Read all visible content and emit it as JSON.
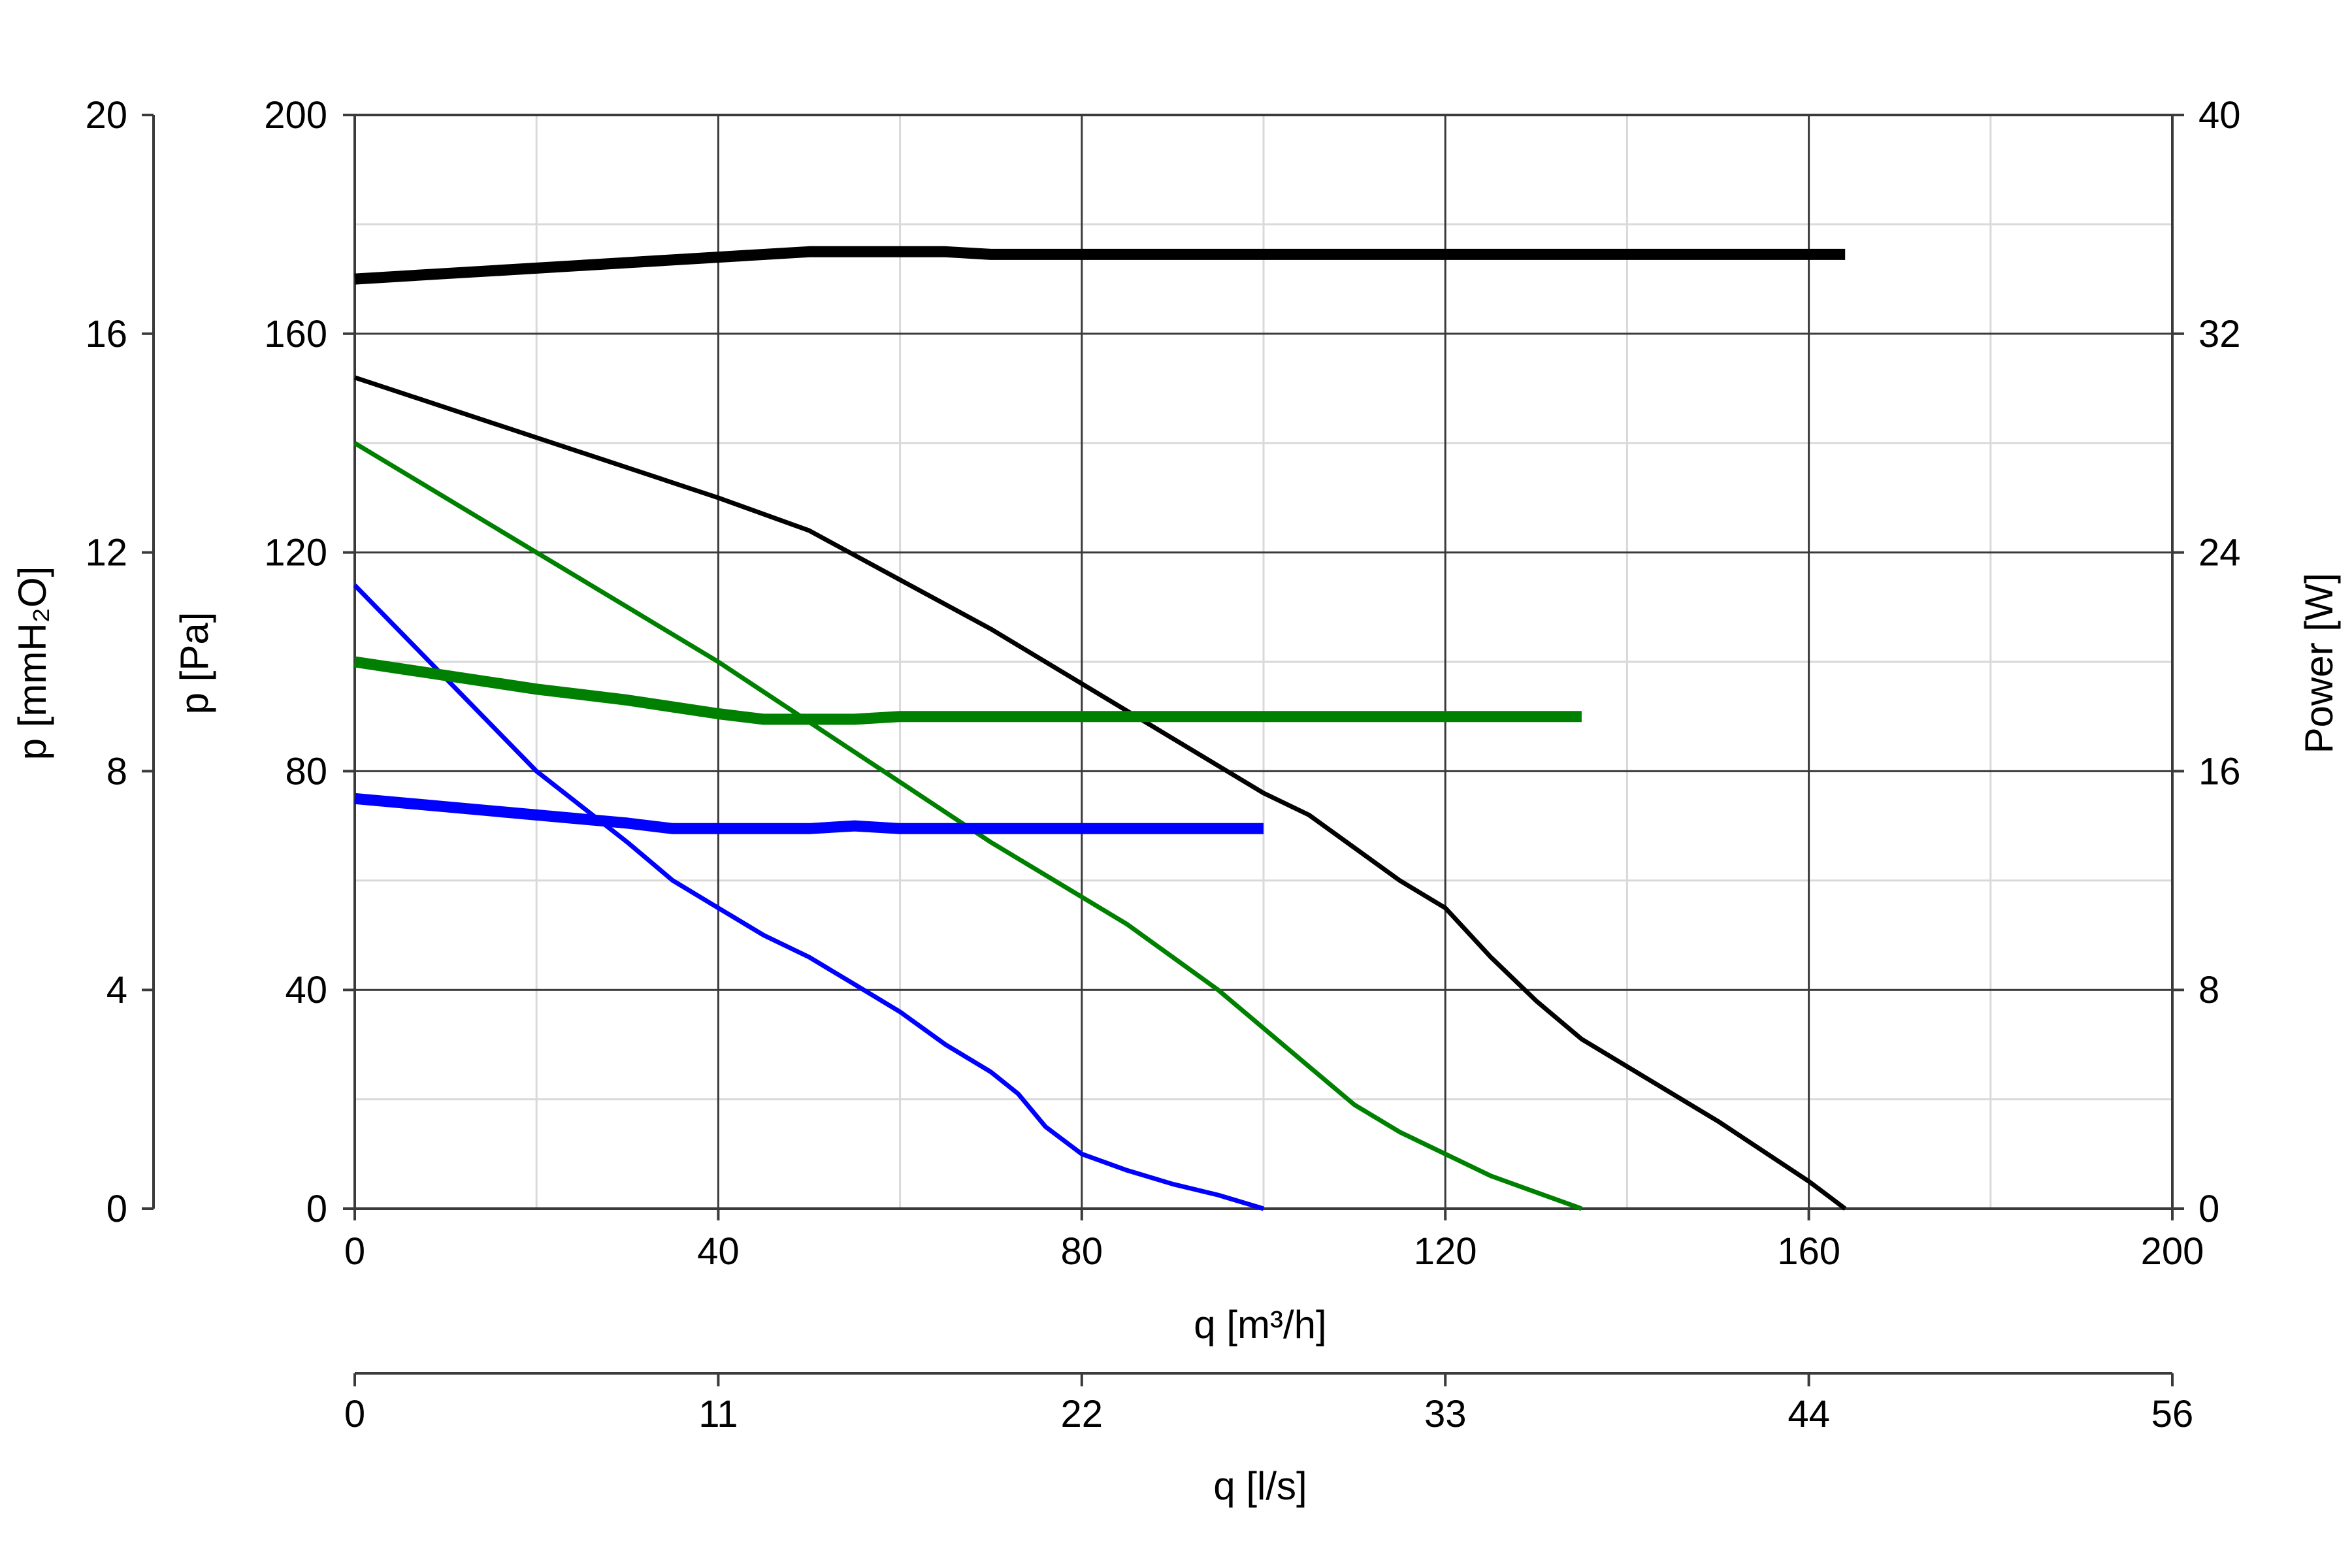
{
  "chart_data": {
    "type": "line",
    "x_axis": {
      "label": "q [m³/h]",
      "range": [
        0,
        200
      ],
      "ticks": [
        "0",
        "40",
        "80",
        "120",
        "160",
        "200"
      ],
      "minor_step": 20
    },
    "x2_axis": {
      "label": "q [l/s]",
      "ticks": [
        "0",
        "11",
        "22",
        "33",
        "44",
        "56"
      ]
    },
    "y_axis": {
      "label": "p [Pa]",
      "range": [
        0,
        200
      ],
      "ticks": [
        "0",
        "40",
        "80",
        "120",
        "160",
        "200"
      ],
      "minor_step": 20
    },
    "y_mm_axis": {
      "label": "p [mmH₂O]",
      "ticks": [
        "0",
        "4",
        "8",
        "12",
        "16",
        "20"
      ]
    },
    "y_right_axis": {
      "label": "Power [W]",
      "range": [
        0,
        40
      ],
      "ticks": [
        "0",
        "8",
        "16",
        "24",
        "32",
        "40"
      ]
    },
    "grid": true,
    "legend": "none",
    "series": [
      {
        "kind": "pressure",
        "color": "#0000ff",
        "x": [
          0,
          10,
          20,
          30,
          35,
          40,
          45,
          50,
          55,
          60,
          65,
          70,
          73,
          76,
          80,
          85,
          90,
          95,
          100
        ],
        "y": [
          114,
          97,
          80,
          67,
          60,
          55,
          50,
          46,
          41,
          36,
          30,
          25,
          21,
          15,
          10,
          7,
          4.5,
          2.5,
          0
        ]
      },
      {
        "kind": "pressure",
        "color": "#008000",
        "x": [
          0,
          10,
          20,
          30,
          40,
          50,
          60,
          70,
          80,
          85,
          90,
          95,
          100,
          105,
          110,
          115,
          120,
          125,
          130,
          135
        ],
        "y": [
          140,
          130,
          120,
          110,
          100,
          89,
          78,
          67,
          57,
          52,
          46,
          40,
          33,
          26,
          19,
          14,
          10,
          6,
          3,
          0
        ]
      },
      {
        "kind": "pressure",
        "color": "#000000",
        "x": [
          0,
          20,
          40,
          50,
          60,
          70,
          80,
          90,
          100,
          105,
          110,
          115,
          120,
          125,
          130,
          135,
          140,
          150,
          160,
          164
        ],
        "y": [
          152,
          141,
          130,
          124,
          115,
          106,
          96,
          86,
          76,
          72,
          66,
          60,
          55,
          46,
          38,
          31,
          26,
          16,
          5,
          0
        ]
      },
      {
        "kind": "power",
        "color": "#0000ff",
        "x": [
          0,
          10,
          20,
          30,
          35,
          40,
          50,
          55,
          60,
          70,
          80,
          90,
          100
        ],
        "y": [
          15.0,
          14.7,
          14.4,
          14.1,
          13.9,
          13.9,
          13.9,
          14.0,
          13.9,
          13.9,
          13.9,
          13.9,
          13.9
        ]
      },
      {
        "kind": "power",
        "color": "#008000",
        "x": [
          0,
          10,
          20,
          30,
          40,
          45,
          50,
          55,
          60,
          70,
          80,
          100,
          120,
          135
        ],
        "y": [
          20.0,
          19.5,
          19.0,
          18.6,
          18.1,
          17.9,
          17.9,
          17.9,
          18.0,
          18.0,
          18.0,
          18.0,
          18.0,
          18.0
        ]
      },
      {
        "kind": "power",
        "color": "#000000",
        "x": [
          0,
          10,
          20,
          30,
          40,
          50,
          55,
          60,
          65,
          70,
          80,
          100,
          120,
          140,
          164
        ],
        "y": [
          34.0,
          34.2,
          34.4,
          34.6,
          34.8,
          35.0,
          35.0,
          35.0,
          35.0,
          34.9,
          34.9,
          34.9,
          34.9,
          34.9,
          34.9
        ]
      }
    ]
  }
}
